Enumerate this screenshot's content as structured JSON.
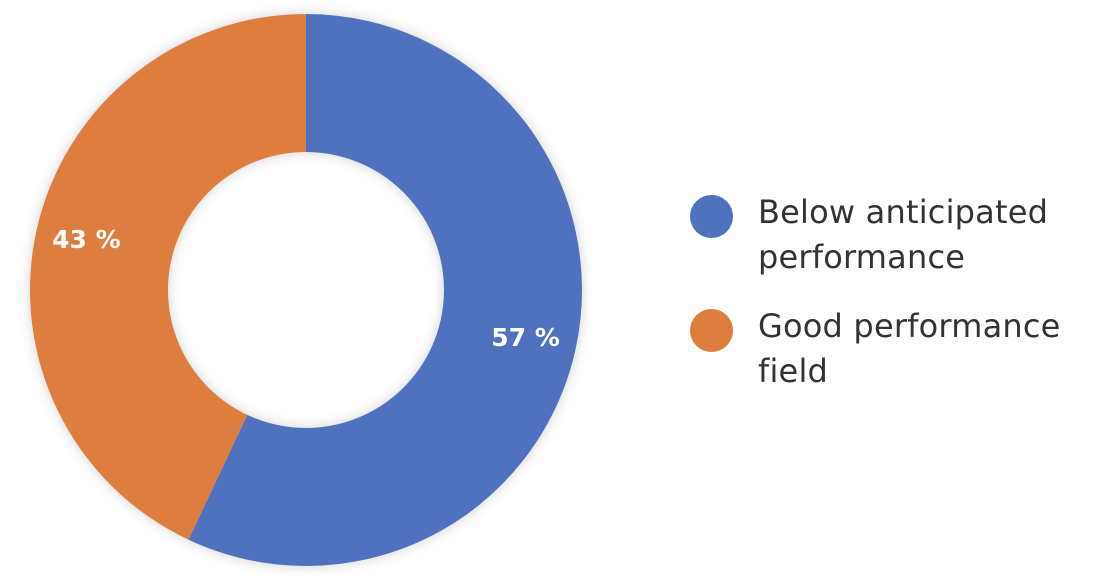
{
  "chart_data": {
    "type": "pie",
    "title": "",
    "hole": "donut",
    "labels": [
      "Below anticipated performance",
      "Good performance field"
    ],
    "values": [
      57,
      43
    ],
    "value_labels": [
      "57 %",
      "43 %"
    ],
    "colors": [
      "#4f71be",
      "#dd7e3f"
    ],
    "start_angle_deg": 0,
    "direction": "clockwise",
    "legend": {
      "placement": "right",
      "items": [
        {
          "line1": "Below anticipated",
          "line2": "performance",
          "color": "#4f71be"
        },
        {
          "line1": "Good performance",
          "line2": "field",
          "color": "#dd7e3f"
        }
      ]
    }
  }
}
